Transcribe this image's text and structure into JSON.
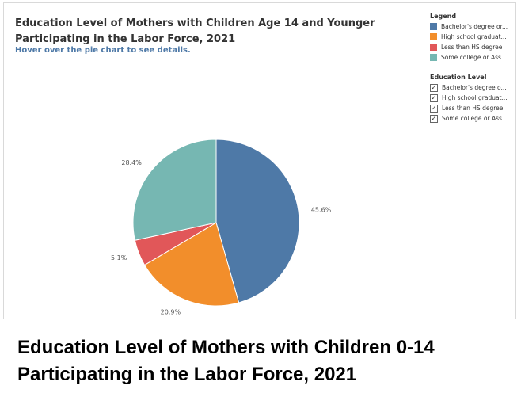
{
  "viz": {
    "title": "Education Level of Mothers with Children Age 14 and Younger Participating in the Labor Force, 2021",
    "subtitle": "Hover over the pie chart to see details."
  },
  "legend": {
    "heading": "Legend",
    "items": [
      {
        "label": "Bachelor's degree or...",
        "color": "#4e79a7"
      },
      {
        "label": "High school graduat...",
        "color": "#f28e2b"
      },
      {
        "label": "Less than HS degree",
        "color": "#e15759"
      },
      {
        "label": "Some college or Ass...",
        "color": "#76b7b2"
      }
    ]
  },
  "filter": {
    "heading": "Education Level",
    "items": [
      {
        "label": "Bachelor's degree o...",
        "checked": true
      },
      {
        "label": "High school graduat...",
        "checked": true
      },
      {
        "label": "Less than HS degree",
        "checked": true
      },
      {
        "label": "Some college or Ass...",
        "checked": true
      }
    ]
  },
  "caption": "Education Level of Mothers with Children 0-14 Participating in the Labor Force, 2021",
  "chart_data": {
    "type": "pie",
    "title": "Education Level of Mothers with Children Age 14 and Younger Participating in the Labor Force, 2021",
    "categories": [
      "Bachelor's degree or...",
      "High school graduat...",
      "Less than HS degree",
      "Some college or Ass..."
    ],
    "values": [
      45.6,
      20.9,
      5.1,
      28.4
    ],
    "labels": [
      "45.6%",
      "20.9%",
      "5.1%",
      "28.4%"
    ],
    "colors": [
      "#4e79a7",
      "#f28e2b",
      "#e15759",
      "#76b7b2"
    ],
    "legend": "top-right"
  }
}
